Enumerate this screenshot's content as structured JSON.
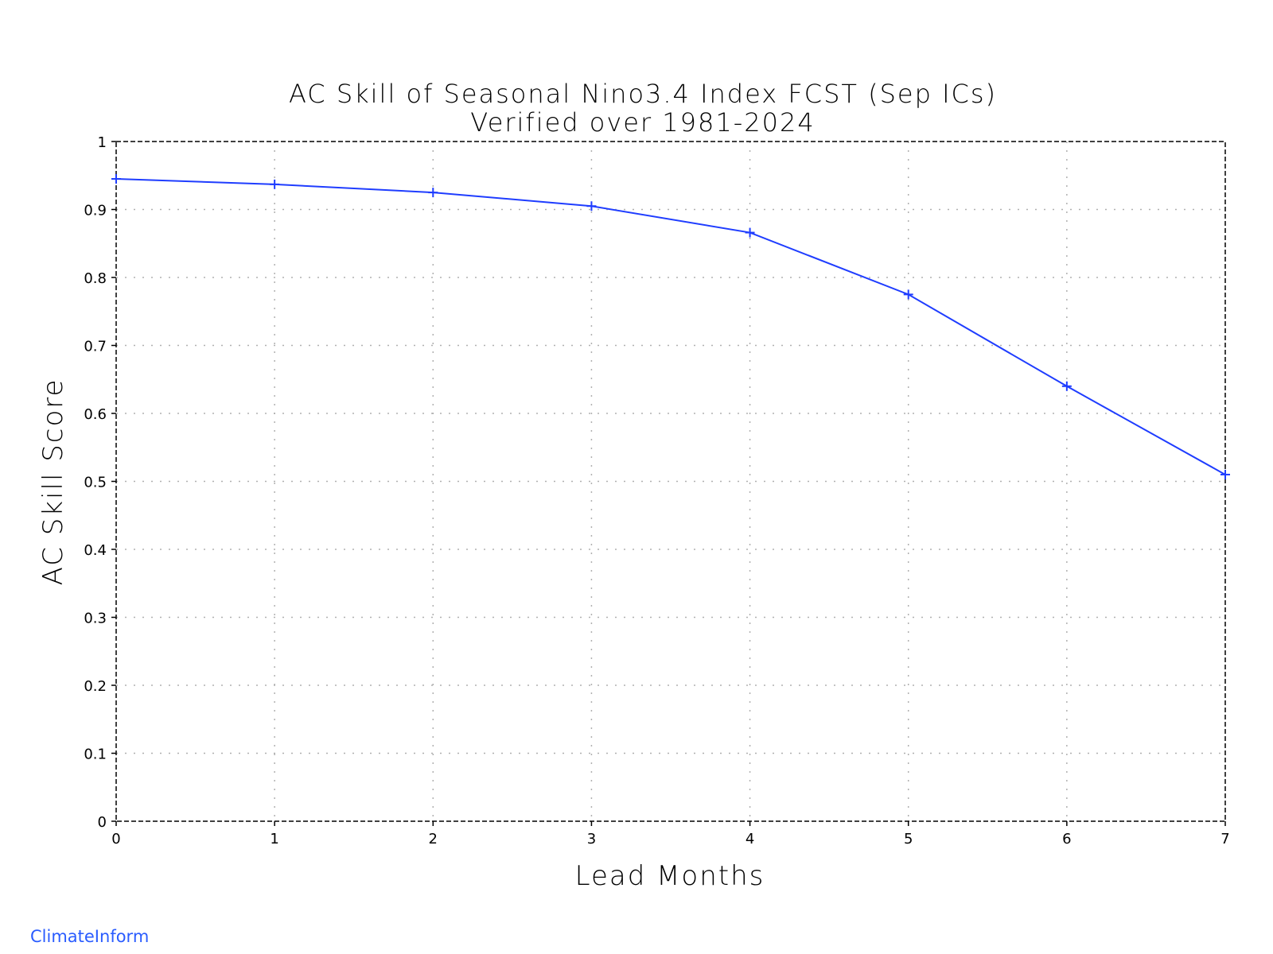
{
  "chart_data": {
    "type": "line",
    "title": "AC Skill of Seasonal Nino3.4 Index FCST (Sep ICs)",
    "subtitle": "Verified over 1981-2024",
    "xlabel": "Lead Months",
    "ylabel": "AC Skill Score",
    "x": [
      0,
      1,
      2,
      3,
      4,
      5,
      6,
      7
    ],
    "series": [
      {
        "values": [
          0.945,
          0.937,
          0.925,
          0.905,
          0.866,
          0.775,
          0.64,
          0.51
        ]
      }
    ],
    "xlim": [
      0,
      7
    ],
    "ylim": [
      0,
      1
    ],
    "x_ticks": [
      "0",
      "1",
      "2",
      "3",
      "4",
      "5",
      "6",
      "7"
    ],
    "y_ticks": [
      "0",
      "0.1",
      "0.2",
      "0.3",
      "0.4",
      "0.5",
      "0.6",
      "0.7",
      "0.8",
      "0.9",
      "1"
    ],
    "grid": true,
    "marker": "plus",
    "line_color": "#1f3dff",
    "grid_color": "#b0b0b0"
  },
  "footer": {
    "watermark": "ClimateInform",
    "watermark_color": "#2a5cff"
  }
}
